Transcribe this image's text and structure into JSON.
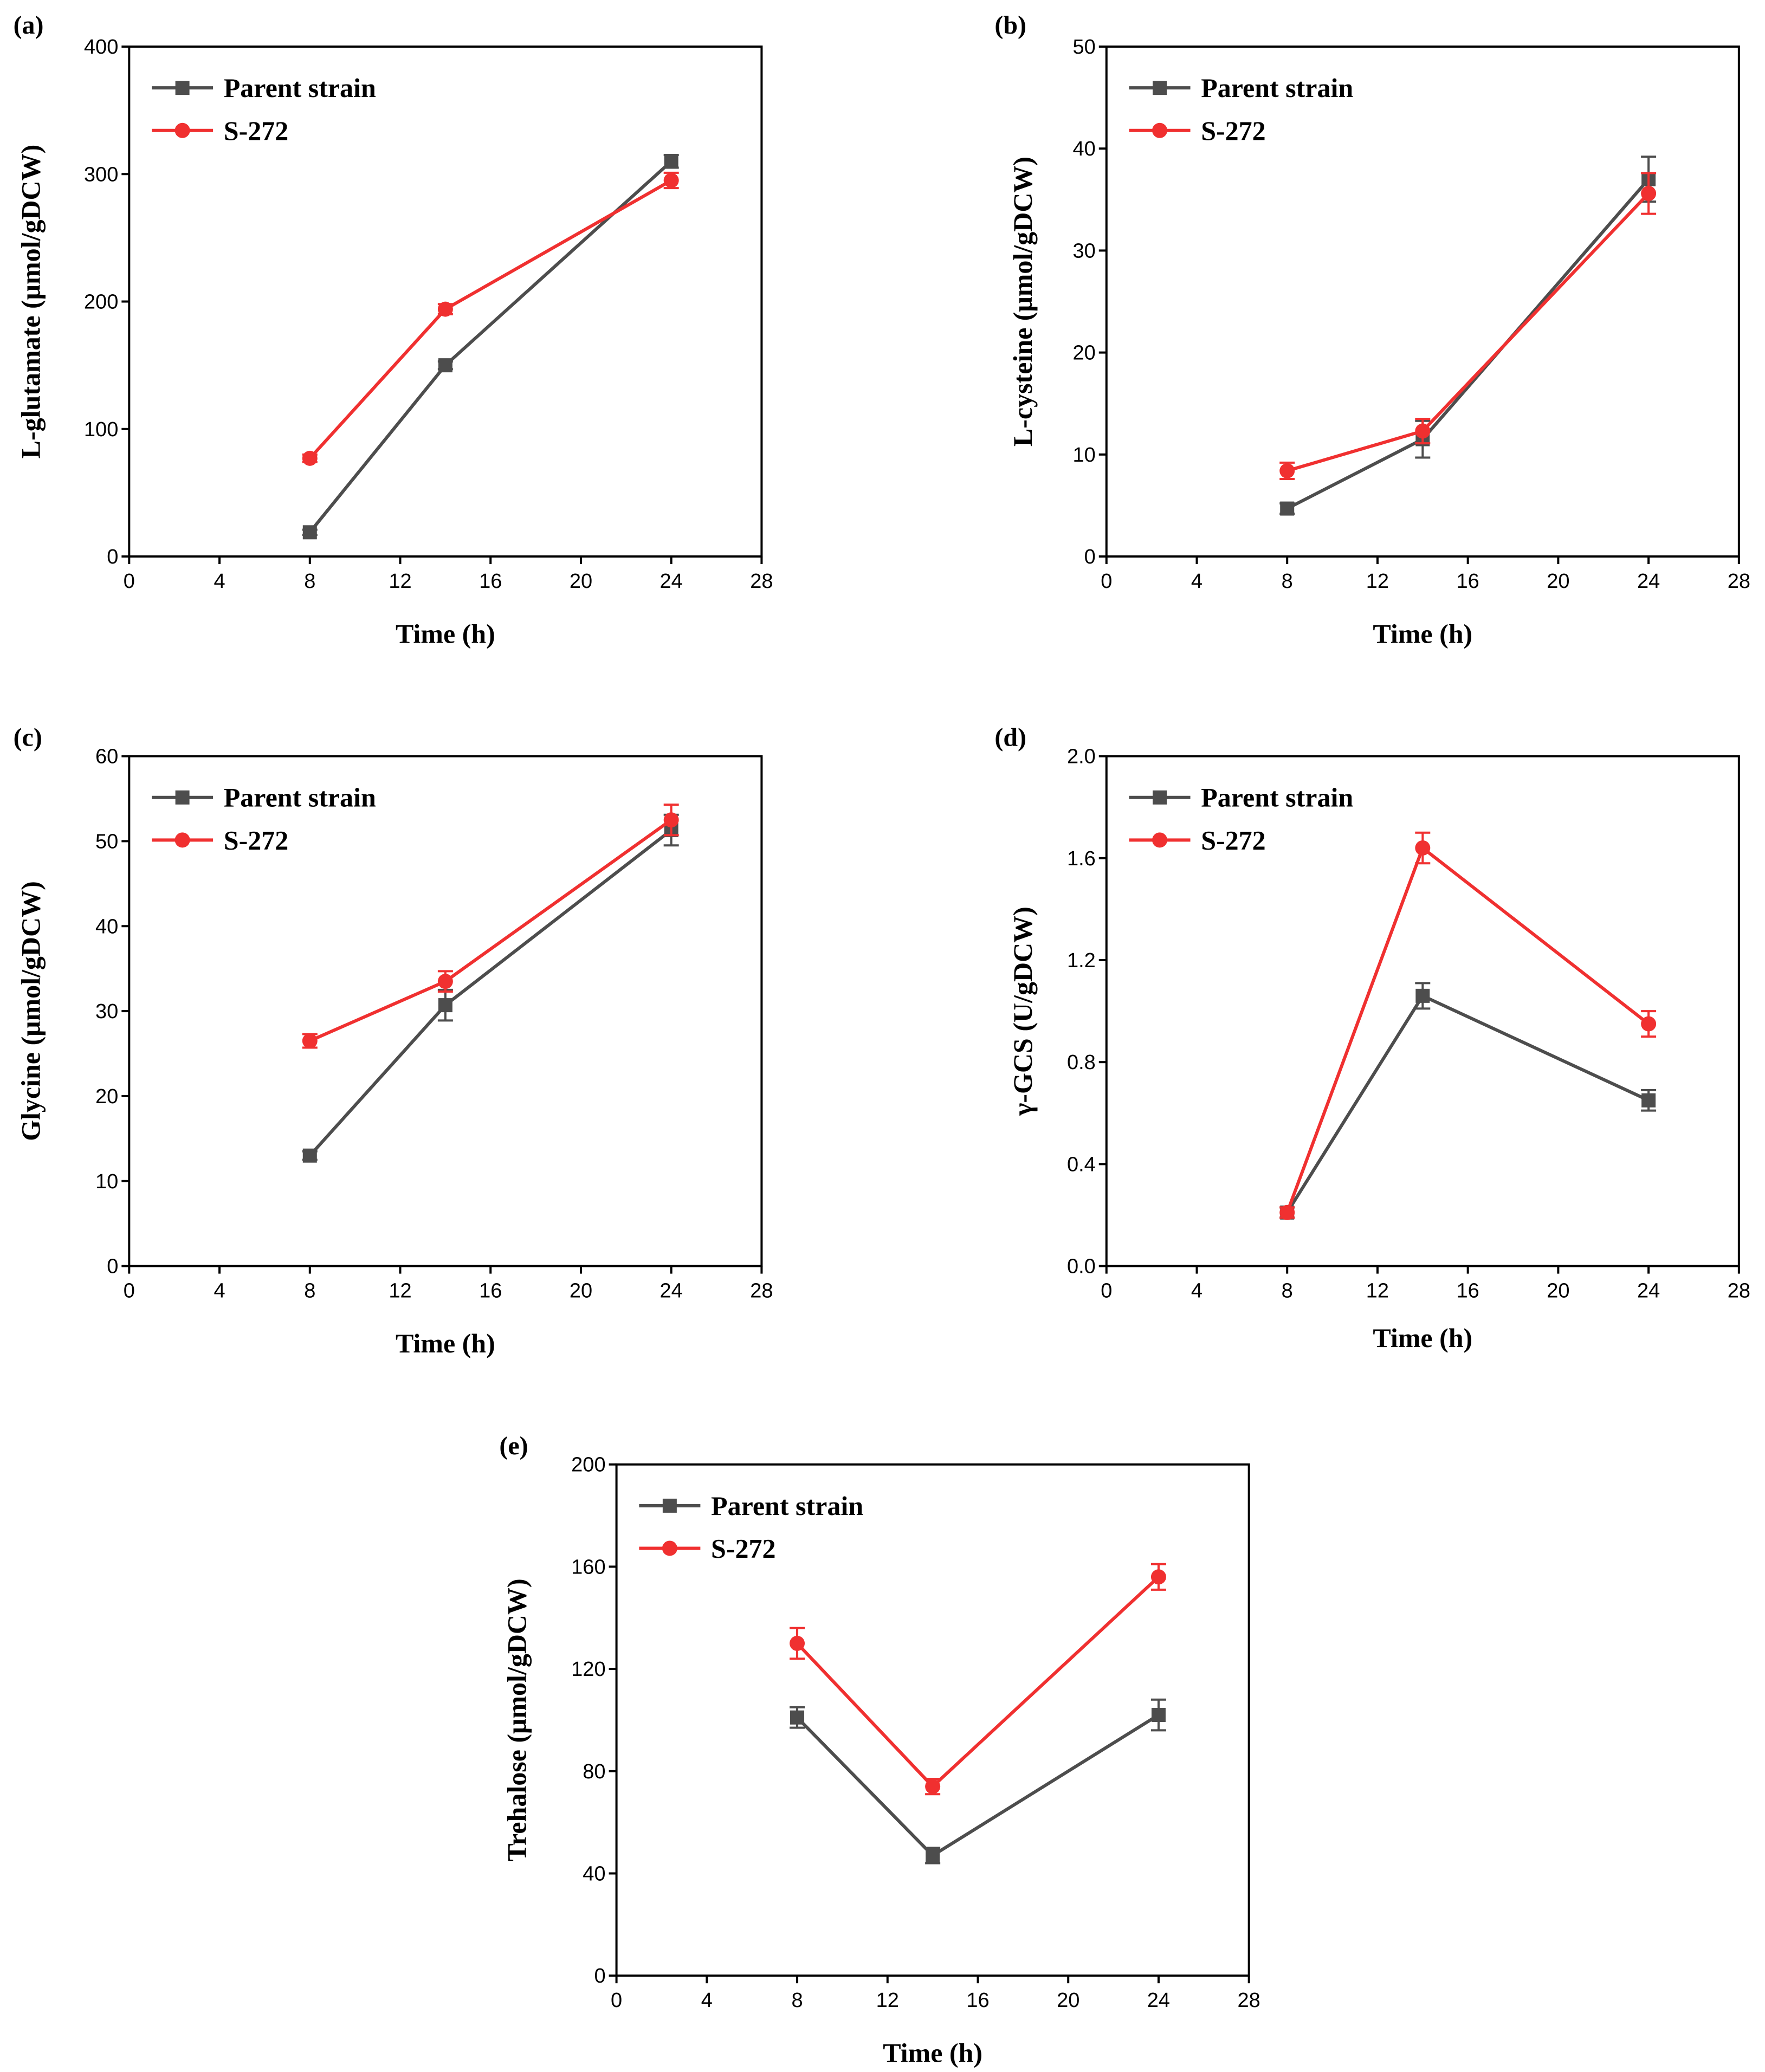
{
  "figure": {
    "legend": {
      "series_names": [
        "Parent strain",
        "S-272"
      ],
      "colors": [
        "#4d4d4d",
        "#f03030"
      ],
      "marker_icons": [
        "square-marker-icon",
        "circle-marker-icon"
      ]
    }
  },
  "chart_data": [
    {
      "panel": "(a)",
      "type": "line",
      "title": "",
      "xlabel": "Time (h)",
      "ylabel": "L-glutamate (μmol/gDCW)",
      "xlim": [
        0,
        28
      ],
      "ylim": [
        0,
        400
      ],
      "xticks": [
        0,
        4,
        8,
        12,
        16,
        20,
        24,
        28
      ],
      "yticks": [
        0,
        100,
        200,
        300,
        400
      ],
      "ytick_labels": [
        "0",
        "100",
        "200",
        "300",
        "400"
      ],
      "xtick_labels": [
        "0",
        "4",
        "8",
        "12",
        "16",
        "20",
        "24",
        "28"
      ],
      "legend_position": "top-left",
      "x": [
        8,
        14,
        24
      ],
      "series": [
        {
          "name": "Parent strain",
          "values": [
            19,
            150,
            310
          ],
          "errors": [
            2,
            3,
            5
          ]
        },
        {
          "name": "S-272",
          "values": [
            77,
            194,
            295
          ],
          "errors": [
            3,
            4,
            6
          ]
        }
      ]
    },
    {
      "panel": "(b)",
      "type": "line",
      "title": "",
      "xlabel": "Time (h)",
      "ylabel": "L-cysteine (μmol/gDCW)",
      "xlim": [
        0,
        28
      ],
      "ylim": [
        0,
        50
      ],
      "xticks": [
        0,
        4,
        8,
        12,
        16,
        20,
        24,
        28
      ],
      "yticks": [
        0,
        10,
        20,
        30,
        40,
        50
      ],
      "ytick_labels": [
        "0",
        "10",
        "20",
        "30",
        "40",
        "50"
      ],
      "xtick_labels": [
        "0",
        "4",
        "8",
        "12",
        "16",
        "20",
        "24",
        "28"
      ],
      "legend_position": "top-left",
      "x": [
        8,
        14,
        24
      ],
      "series": [
        {
          "name": "Parent strain",
          "values": [
            4.7,
            11.5,
            37
          ],
          "errors": [
            0.5,
            1.8,
            2.2
          ]
        },
        {
          "name": "S-272",
          "values": [
            8.4,
            12.3,
            35.6
          ],
          "errors": [
            0.8,
            1.2,
            2.0
          ]
        }
      ]
    },
    {
      "panel": "(c)",
      "type": "line",
      "title": "",
      "xlabel": "Time (h)",
      "ylabel": "Glycine (μmol/gDCW)",
      "xlim": [
        0,
        28
      ],
      "ylim": [
        0,
        60
      ],
      "xticks": [
        0,
        4,
        8,
        12,
        16,
        20,
        24,
        28
      ],
      "yticks": [
        0,
        10,
        20,
        30,
        40,
        50,
        60
      ],
      "ytick_labels": [
        "0",
        "10",
        "20",
        "30",
        "40",
        "50",
        "60"
      ],
      "xtick_labels": [
        "0",
        "4",
        "8",
        "12",
        "16",
        "20",
        "24",
        "28"
      ],
      "legend_position": "top-left",
      "x": [
        8,
        14,
        24
      ],
      "series": [
        {
          "name": "Parent strain",
          "values": [
            13,
            30.7,
            51.3
          ],
          "errors": [
            0.5,
            1.8,
            1.8
          ]
        },
        {
          "name": "S-272",
          "values": [
            26.5,
            33.5,
            52.5
          ],
          "errors": [
            0.8,
            1.2,
            1.8
          ]
        }
      ]
    },
    {
      "panel": "(d)",
      "type": "line",
      "title": "",
      "xlabel": "Time (h)",
      "ylabel": "γ-GCS (U/gDCW)",
      "xlim": [
        0,
        28
      ],
      "ylim": [
        0,
        2.0
      ],
      "xticks": [
        0,
        4,
        8,
        12,
        16,
        20,
        24,
        28
      ],
      "yticks": [
        0,
        0.4,
        0.8,
        1.2,
        1.6,
        2.0
      ],
      "ytick_labels": [
        "0.0",
        "0.4",
        "0.8",
        "1.2",
        "1.6",
        "2.0"
      ],
      "xtick_labels": [
        "0",
        "4",
        "8",
        "12",
        "16",
        "20",
        "24",
        "28"
      ],
      "legend_position": "top-left",
      "x": [
        8,
        14,
        24
      ],
      "series": [
        {
          "name": "Parent strain",
          "values": [
            0.21,
            1.06,
            0.65
          ],
          "errors": [
            0.02,
            0.05,
            0.04
          ]
        },
        {
          "name": "S-272",
          "values": [
            0.21,
            1.64,
            0.95
          ],
          "errors": [
            0.02,
            0.06,
            0.05
          ]
        }
      ]
    },
    {
      "panel": "(e)",
      "type": "line",
      "title": "",
      "xlabel": "Time (h)",
      "ylabel": "Trehalose (μmol/gDCW)",
      "xlim": [
        0,
        28
      ],
      "ylim": [
        0,
        200
      ],
      "xticks": [
        0,
        4,
        8,
        12,
        16,
        20,
        24,
        28
      ],
      "yticks": [
        0,
        40,
        80,
        120,
        160,
        200
      ],
      "ytick_labels": [
        "0",
        "40",
        "80",
        "120",
        "160",
        "200"
      ],
      "xtick_labels": [
        "0",
        "4",
        "8",
        "12",
        "16",
        "20",
        "24",
        "28"
      ],
      "legend_position": "top-left",
      "x": [
        8,
        14,
        24
      ],
      "series": [
        {
          "name": "Parent strain",
          "values": [
            101,
            47,
            102
          ],
          "errors": [
            4,
            3,
            6
          ]
        },
        {
          "name": "S-272",
          "values": [
            130,
            74,
            156
          ],
          "errors": [
            6,
            3,
            5
          ]
        }
      ]
    }
  ]
}
